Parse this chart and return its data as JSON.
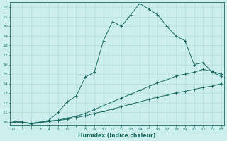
{
  "xlabel": "Humidex (Indice chaleur)",
  "bg_color": "#cceeed",
  "line_color": "#1a6b60",
  "grid_color": "#b0d8d5",
  "x_ticks": [
    0,
    1,
    2,
    3,
    4,
    5,
    6,
    7,
    8,
    9,
    10,
    11,
    12,
    13,
    14,
    15,
    16,
    17,
    18,
    19,
    20,
    21,
    22,
    23
  ],
  "y_ticks": [
    10,
    11,
    12,
    13,
    14,
    15,
    16,
    17,
    18,
    19,
    20,
    21,
    22
  ],
  "xlim": [
    -0.3,
    23.3
  ],
  "ylim": [
    9.6,
    22.5
  ],
  "line1_x": [
    0,
    1,
    2,
    3,
    4,
    5,
    6,
    7,
    8,
    9,
    10,
    11,
    12,
    13,
    14,
    15,
    16,
    17,
    18,
    19,
    20,
    21,
    22,
    23
  ],
  "line1_y": [
    10.0,
    10.0,
    9.8,
    9.9,
    10.2,
    11.0,
    12.1,
    12.7,
    14.7,
    15.2,
    18.5,
    20.5,
    20.0,
    21.2,
    22.4,
    21.8,
    21.2,
    20.0,
    19.0,
    18.5,
    16.0,
    16.2,
    15.2,
    14.8
  ],
  "line2_x": [
    0,
    1,
    2,
    3,
    4,
    5,
    6,
    7,
    8,
    9,
    10,
    11,
    12,
    13,
    14,
    15,
    16,
    17,
    18,
    19,
    20,
    21,
    22,
    23
  ],
  "line2_y": [
    10.0,
    10.0,
    9.85,
    10.0,
    10.1,
    10.2,
    10.4,
    10.6,
    10.9,
    11.3,
    11.7,
    12.1,
    12.5,
    12.9,
    13.3,
    13.7,
    14.1,
    14.4,
    14.8,
    15.0,
    15.2,
    15.5,
    15.3,
    15.0
  ],
  "line3_x": [
    0,
    1,
    2,
    3,
    4,
    5,
    6,
    7,
    8,
    9,
    10,
    11,
    12,
    13,
    14,
    15,
    16,
    17,
    18,
    19,
    20,
    21,
    22,
    23
  ],
  "line3_y": [
    10.0,
    10.0,
    9.85,
    9.95,
    10.05,
    10.15,
    10.3,
    10.45,
    10.65,
    10.9,
    11.1,
    11.35,
    11.6,
    11.85,
    12.1,
    12.35,
    12.6,
    12.8,
    13.05,
    13.2,
    13.4,
    13.6,
    13.75,
    14.0
  ]
}
